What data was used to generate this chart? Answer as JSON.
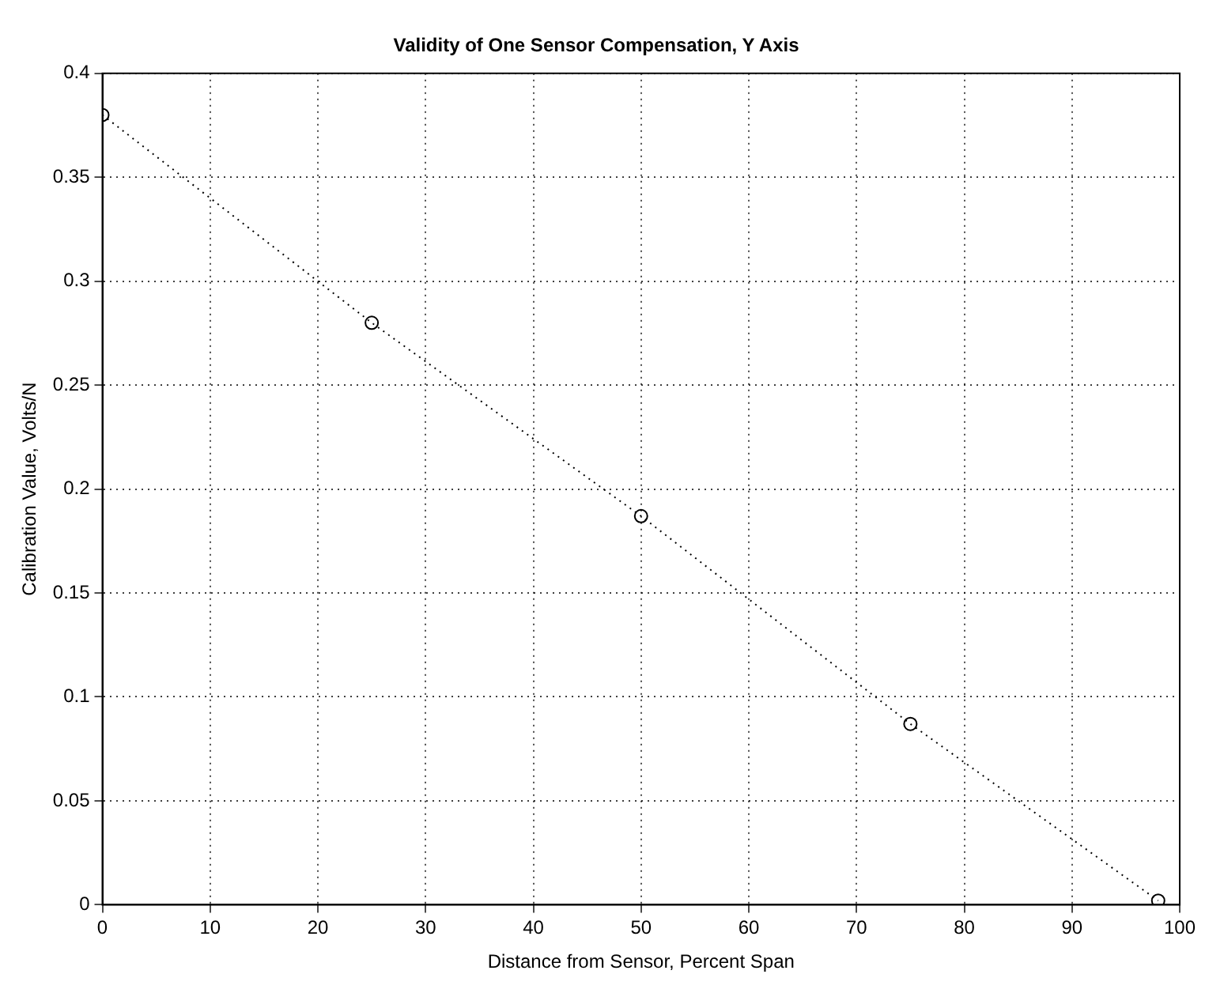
{
  "chart_data": {
    "type": "line",
    "title": "Validity of One Sensor Compensation, Y Axis",
    "xlabel": "Distance from Sensor, Percent Span",
    "ylabel": "Calibration Value, Volts/N",
    "x": [
      0,
      25,
      50,
      75,
      98
    ],
    "series": [
      {
        "color": "#000000",
        "values": [
          0.38,
          0.28,
          0.187,
          0.087,
          0.002
        ]
      }
    ],
    "xlim": [
      0,
      100
    ],
    "xticks": [
      0,
      10,
      20,
      30,
      40,
      50,
      60,
      70,
      80,
      90,
      100
    ],
    "ylim": [
      0,
      0.4
    ],
    "yticks": [
      0,
      0.05,
      0.1,
      0.15,
      0.2,
      0.25,
      0.3,
      0.35,
      0.4
    ],
    "grid": true,
    "legend": false,
    "marker": "circle",
    "line_style": "dotted"
  }
}
